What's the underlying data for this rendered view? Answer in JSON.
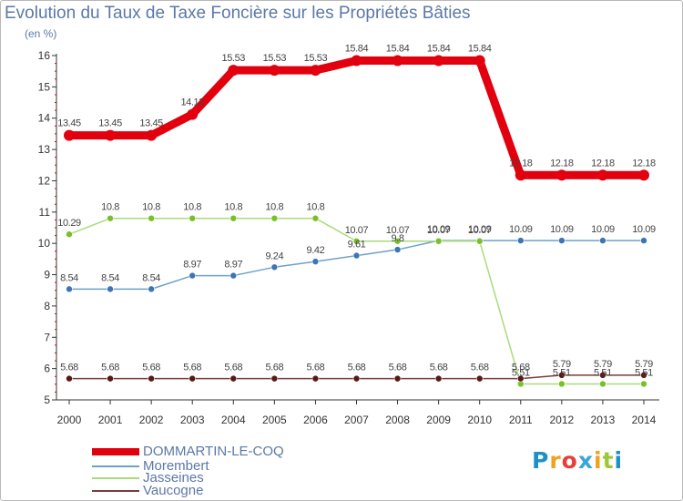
{
  "colors": {
    "text": "#5b78a8",
    "axis": "#333333",
    "grid": "#dddddd",
    "tick_red": "#e2000f",
    "dommartin": "#e2000f",
    "dommartin_marker": "#cc0000",
    "morembert": "#6da1cc",
    "morembert_marker": "#3d74b3",
    "jasseines": "#a9db7b",
    "jasseines_marker": "#78c028",
    "vaucogne": "#7b3d3d",
    "vaucogne_marker": "#5a1717"
  },
  "logo": {
    "text": "Proxiti",
    "letter_colors": [
      "#1d8fc9",
      "#f0a21a",
      "#e83e39",
      "#3aa5d9",
      "#f0a21a",
      "#9bc83a",
      "#1d8fc9"
    ]
  },
  "chart_data": {
    "type": "line",
    "title": "Evolution du Taux de Taxe Foncière sur les Propriétés Bâties",
    "ylabel": "(en %)",
    "xlabel": "",
    "ylim": [
      5,
      16
    ],
    "y_ticks": [
      "5",
      "6",
      "7",
      "8",
      "9",
      "10",
      "11",
      "12",
      "13",
      "14",
      "15",
      "16"
    ],
    "categories": [
      "2000",
      "2001",
      "2002",
      "2003",
      "2004",
      "2005",
      "2006",
      "2007",
      "2008",
      "2009",
      "2010",
      "2011",
      "2012",
      "2013",
      "2014"
    ],
    "grid": false,
    "legend_position": "bottom-left",
    "series": [
      {
        "name": "DOMMARTIN-LE-COQ",
        "color_key": "dommartin",
        "values": [
          13.45,
          13.45,
          13.45,
          14.12,
          15.53,
          15.53,
          15.53,
          15.84,
          15.84,
          15.84,
          15.84,
          12.18,
          12.18,
          12.18,
          12.18
        ],
        "labels": [
          "13.45",
          "13.45",
          "13.45",
          "14.12",
          "15.53",
          "15.53",
          "15.53",
          "15.84",
          "15.84",
          "15.84",
          "15.84",
          "12.18",
          "12.18",
          "12.18",
          "12.18"
        ]
      },
      {
        "name": "Morembert",
        "color_key": "morembert",
        "values": [
          8.54,
          8.54,
          8.54,
          8.97,
          8.97,
          9.24,
          9.42,
          9.61,
          9.8,
          10.09,
          10.09,
          10.09,
          10.09,
          10.09,
          10.09
        ],
        "labels": [
          "8.54",
          "8.54",
          "8.54",
          "8.97",
          "8.97",
          "9.24",
          "9.42",
          "9.61",
          "9.8",
          "10.09",
          "10.09",
          "10.09",
          "10.09",
          "10.09",
          "10.09"
        ]
      },
      {
        "name": "Jasseines",
        "color_key": "jasseines",
        "values": [
          10.29,
          10.8,
          10.8,
          10.8,
          10.8,
          10.8,
          10.8,
          10.07,
          10.07,
          10.07,
          10.07,
          5.51,
          5.51,
          5.51,
          5.51
        ],
        "labels": [
          "10.29",
          "10.8",
          "10.8",
          "10.8",
          "10.8",
          "10.8",
          "10.8",
          "10.07",
          "10.07",
          "10.07",
          "10.07",
          "5.51",
          "5.51",
          "5.51",
          "5.51"
        ]
      },
      {
        "name": "Vaucogne",
        "color_key": "vaucogne",
        "values": [
          5.68,
          5.68,
          5.68,
          5.68,
          5.68,
          5.68,
          5.68,
          5.68,
          5.68,
          5.68,
          5.68,
          5.68,
          5.79,
          5.79,
          5.79
        ],
        "labels": [
          "5.68",
          "5.68",
          "5.68",
          "5.68",
          "5.68",
          "5.68",
          "5.68",
          "5.68",
          "5.68",
          "5.68",
          "5.68",
          "5.68",
          "5.79",
          "5.79",
          "5.79"
        ]
      }
    ]
  }
}
